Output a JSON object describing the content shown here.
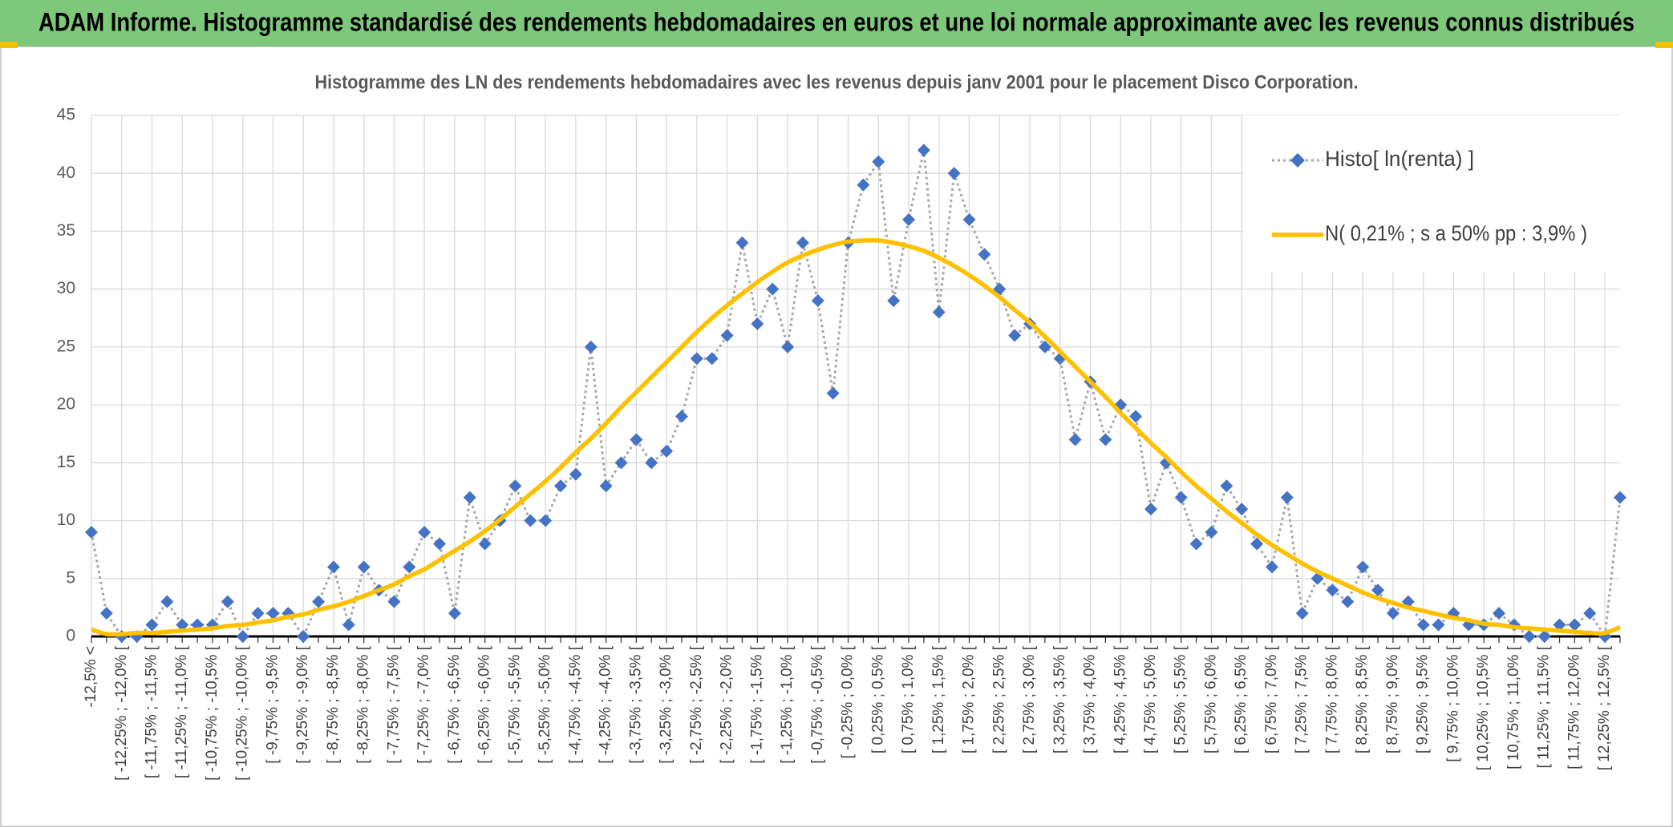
{
  "header": {
    "title": "ADAM Informe. Histogramme standardisé des rendements hebdomadaires en euros et une loi normale approximante avec les revenus connus distribués"
  },
  "chart_data": {
    "type": "line",
    "title": "Histogramme des LN des rendements hebdomadaires avec les revenus depuis janv 2001 pour le placement Disco Corporation.",
    "categories": [
      "-12,5% <",
      null,
      "[ -12,25% ; -12,0% [",
      null,
      "[ -11,75% ; -11,5% [",
      null,
      "[ -11,25% ; -11,0% [",
      null,
      "[ -10,75% ; -10,5% [",
      null,
      "[ -10,25% ; -10,0% [",
      null,
      "[ -9,75% ; -9,5% [",
      null,
      "[ -9,25% ; -9,0% [",
      null,
      "[ -8,75% ; -8,5% [",
      null,
      "[ -8,25% ; -8,0% [",
      null,
      "[ -7,75% ; -7,5% [",
      null,
      "[ -7,25% ; -7,0% [",
      null,
      "[ -6,75% ; -6,5% [",
      null,
      "[ -6,25% ; -6,0% [",
      null,
      "[ -5,75% ; -5,5% [",
      null,
      "[ -5,25% ; -5,0% [",
      null,
      "[ -4,75% ; -4,5% [",
      null,
      "[ -4,25% ; -4,0% [",
      null,
      "[ -3,75% ; -3,5% [",
      null,
      "[ -3,25% ; -3,0% [",
      null,
      "[ -2,75% ; -2,5% [",
      null,
      "[ -2,25% ; -2,0% [",
      null,
      "[ -1,75% ; -1,5% [",
      null,
      "[ -1,25% ; -1,0% [",
      null,
      "[ -0,75% ; -0,5% [",
      null,
      "[ -0,25% ; 0,0% [",
      null,
      "[ 0,25% ; 0,5% [",
      null,
      "[ 0,75% ; 1,0% [",
      null,
      "[ 1,25% ; 1,5% [",
      null,
      "[ 1,75% ; 2,0% [",
      null,
      "[ 2,25% ; 2,5% [",
      null,
      "[ 2,75% ; 3,0% [",
      null,
      "[ 3,25% ; 3,5% [",
      null,
      "[ 3,75% ; 4,0% [",
      null,
      "[ 4,25% ; 4,5% [",
      null,
      "[ 4,75% ; 5,0% [",
      null,
      "[ 5,25% ; 5,5% [",
      null,
      "[ 5,75% ; 6,0% [",
      null,
      "[ 6,25% ; 6,5% [",
      null,
      "[ 6,75% ; 7,0% [",
      null,
      "[ 7,25% ; 7,5% [",
      null,
      "[ 7,75% ; 8,0% [",
      null,
      "[ 8,25% ; 8,5% [",
      null,
      "[ 8,75% ; 9,0% [",
      null,
      "[ 9,25% ; 9,5% [",
      null,
      "[ 9,75% ; 10,0% [",
      null,
      "[ 10,25% ; 10,5% [",
      null,
      "[ 10,75% ; 11,0% [",
      null,
      "[ 11,25% ; 11,5% [",
      null,
      "[ 11,75% ; 12,0% [",
      null,
      "[ 12,25% ; 12,5% [",
      null
    ],
    "series": [
      {
        "name": "Histo[ ln(renta) ]",
        "color": "#4472c4",
        "line_color": "#a6a6a6",
        "values": [
          9,
          2,
          0,
          0,
          1,
          3,
          1,
          1,
          1,
          3,
          0,
          2,
          2,
          2,
          0,
          3,
          6,
          1,
          6,
          4,
          3,
          6,
          9,
          8,
          2,
          12,
          8,
          10,
          13,
          10,
          10,
          13,
          14,
          25,
          13,
          15,
          17,
          15,
          16,
          19,
          24,
          24,
          26,
          34,
          27,
          30,
          25,
          34,
          29,
          21,
          34,
          39,
          41,
          29,
          36,
          42,
          28,
          40,
          36,
          33,
          30,
          26,
          27,
          25,
          24,
          17,
          22,
          17,
          20,
          19,
          11,
          15,
          12,
          8,
          9,
          13,
          11,
          8,
          6,
          12,
          2,
          5,
          4,
          3,
          6,
          4,
          2,
          3,
          1,
          1,
          2,
          1,
          1,
          2,
          1,
          0,
          0,
          1,
          1,
          2,
          0,
          12
        ]
      },
      {
        "name": "N( 0,21% ; s a 50% pp : 3,9% )",
        "color": "#ffc000",
        "values": [
          0.6,
          0.2,
          0.2,
          0.3,
          0.3,
          0.4,
          0.5,
          0.6,
          0.7,
          0.9,
          1.0,
          1.2,
          1.4,
          1.7,
          1.9,
          2.3,
          2.6,
          3.0,
          3.5,
          4.0,
          4.5,
          5.2,
          5.8,
          6.6,
          7.4,
          8.2,
          9.1,
          10.1,
          11.2,
          12.3,
          13.4,
          14.6,
          15.9,
          17.1,
          18.4,
          19.8,
          21.1,
          22.4,
          23.7,
          25.0,
          26.3,
          27.5,
          28.6,
          29.6,
          30.6,
          31.5,
          32.3,
          32.9,
          33.4,
          33.8,
          34.1,
          34.2,
          34.2,
          34.0,
          33.7,
          33.3,
          32.7,
          32.0,
          31.2,
          30.3,
          29.3,
          28.2,
          27.1,
          25.9,
          24.6,
          23.3,
          22.0,
          20.7,
          19.3,
          18.0,
          16.7,
          15.5,
          14.2,
          13.0,
          11.9,
          10.8,
          9.8,
          8.8,
          7.9,
          7.1,
          6.3,
          5.6,
          5.0,
          4.4,
          3.8,
          3.3,
          2.9,
          2.5,
          2.2,
          1.9,
          1.6,
          1.4,
          1.1,
          1.0,
          0.8,
          0.7,
          0.6,
          0.5,
          0.4,
          0.3,
          0.3,
          0.8
        ]
      }
    ],
    "ylim": [
      0,
      45
    ],
    "yticks": [
      0,
      5,
      10,
      15,
      20,
      25,
      30,
      35,
      40,
      45
    ],
    "grid": true,
    "legend": "top-right"
  }
}
